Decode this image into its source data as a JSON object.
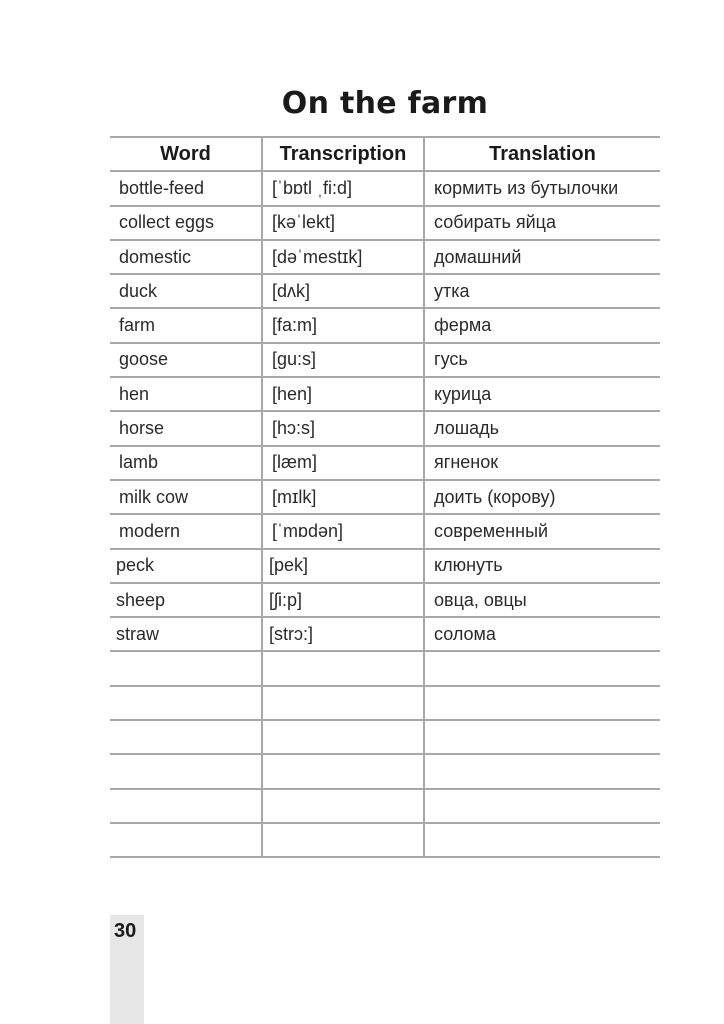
{
  "title": "On the farm",
  "columns": [
    "Word",
    "Transcription",
    "Translation"
  ],
  "rows": [
    [
      "bottle-feed",
      "[ˈbɒtl ˌfi:d]",
      "кормить из бутылочки"
    ],
    [
      "collect eggs",
      "[kəˈlekt]",
      "собирать яйца"
    ],
    [
      "domestic",
      "[dəˈmestɪk]",
      "домашний"
    ],
    [
      "duck",
      "[dʌk]",
      "утка"
    ],
    [
      "farm",
      "[fa:m]",
      "ферма"
    ],
    [
      "goose",
      "[gu:s]",
      "гусь"
    ],
    [
      "hen",
      "[hen]",
      "курица"
    ],
    [
      "horse",
      "[hɔ:s]",
      "лошадь"
    ],
    [
      "lamb",
      "[læm]",
      "ягненок"
    ],
    [
      "milk cow",
      "[mɪlk]",
      "доить (корову)"
    ],
    [
      "modern",
      "[ˈmɒdən]",
      "современный"
    ],
    [
      "peck",
      "[pek]",
      "клюнуть"
    ],
    [
      "sheep",
      "[ʃi:p]",
      "овца, овцы"
    ],
    [
      "straw",
      "[strɔ:]",
      "солома"
    ],
    [
      "",
      "",
      ""
    ],
    [
      "",
      "",
      ""
    ],
    [
      "",
      "",
      ""
    ],
    [
      "",
      "",
      ""
    ],
    [
      "",
      "",
      ""
    ],
    [
      "",
      "",
      ""
    ]
  ],
  "page_number": "30"
}
